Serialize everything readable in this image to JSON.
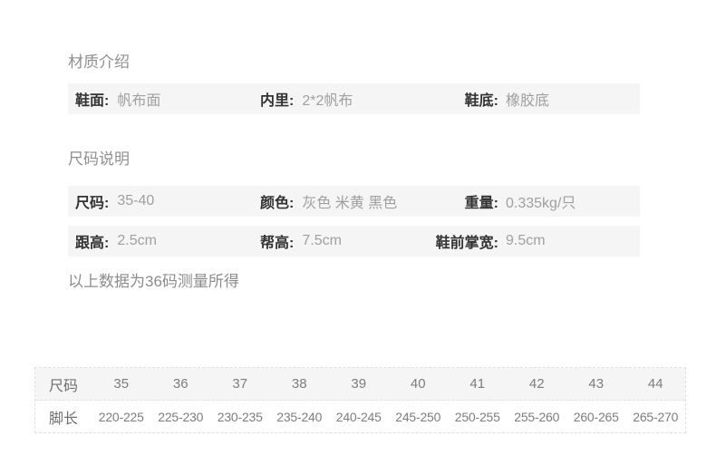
{
  "colors": {
    "page_bg": "#ffffff",
    "row_bg": "#f5f5f5",
    "label_text": "#333333",
    "value_text": "#a0a0a0",
    "title_text": "#8f8f8f",
    "table_border": "#e0e0e0",
    "table_text": "#7d7d7d"
  },
  "materials": {
    "title": "材质介绍",
    "cells": [
      {
        "label": "鞋面:",
        "value": "帆布面"
      },
      {
        "label": "内里:",
        "value": "2*2帆布"
      },
      {
        "label": "鞋底:",
        "value": "橡胶底"
      }
    ]
  },
  "sizing": {
    "title": "尺码说明",
    "row1": [
      {
        "label": "尺码:",
        "value": "35-40"
      },
      {
        "label": "颜色:",
        "value": "灰色 米黄 黑色"
      },
      {
        "label": "重量:",
        "value": "0.335kg/只"
      }
    ],
    "row2": [
      {
        "label": "跟高:",
        "value": "2.5cm"
      },
      {
        "label": "帮高:",
        "value": "7.5cm"
      },
      {
        "label": "鞋前掌宽:",
        "value": "9.5cm"
      }
    ],
    "note": "以上数据为36码测量所得"
  },
  "size_table": {
    "header_label": "尺码",
    "row_label": "脚长",
    "sizes": [
      "35",
      "36",
      "37",
      "38",
      "39",
      "40",
      "41",
      "42",
      "43",
      "44"
    ],
    "foot_lengths": [
      "220-225",
      "225-230",
      "230-235",
      "235-240",
      "240-245",
      "245-250",
      "250-255",
      "255-260",
      "260-265",
      "265-270"
    ]
  }
}
